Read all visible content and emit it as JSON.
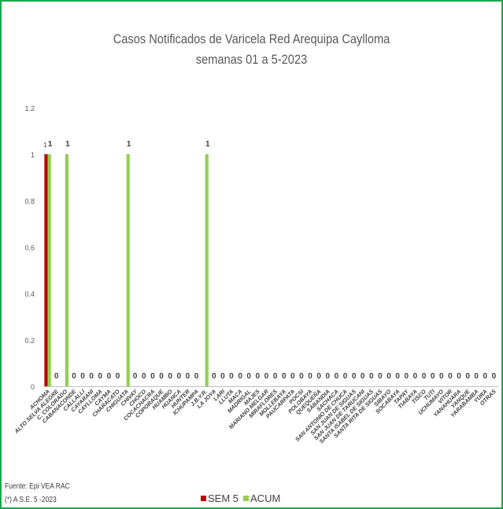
{
  "colors": {
    "sem5": "#c00000",
    "acum": "#92d050",
    "frame": "#1aa84a"
  },
  "chart_data": {
    "type": "bar",
    "title": "Casos Notificados de Varicela Red Arequipa Caylloma",
    "subtitle": "semanas 01 a 5-2023",
    "ylim": [
      0,
      1.2
    ],
    "yticks": [
      "0",
      "0.2",
      "0.4",
      "0.6",
      "0.8",
      "1",
      "1.2"
    ],
    "grid": false,
    "legend_position": "bottom",
    "categories": [
      "ACHOMA",
      "ALTO SELVA ALEGRE",
      "C. COLORADO",
      "CABANACONDE",
      "CALLALLI",
      "CAYARANI",
      "CAYLLOMA",
      "CAYMA",
      "CHARACATO",
      "CHIGUATA",
      "CHIVAY",
      "CHOCO",
      "COCACHACRA",
      "COPORAQUE",
      "HUAMBO",
      "HUANCA",
      "HUNTER",
      "ICHUPAMPA",
      "J.B.Y.R.",
      "LA JOYA",
      "LARI",
      "LLUTA",
      "MACA",
      "MADRIGAL",
      "MAJES",
      "MARIANO MELGAR",
      "MIRAFLORES",
      "MOLLEBAYA",
      "PAUCARPATA",
      "POCSI",
      "POLOBAYA",
      "QUEQUEÑA",
      "SABANDIA",
      "SACHACA",
      "SAN ANTONIO DE CHUCA",
      "SAN JUAN DE SIGUAS",
      "SAN JUAN DE TARUCANI",
      "SANTA ISABEL DE SIGUAS",
      "SANTA RITA DE SIGUAS",
      "SIBAYO",
      "SOCABAYA",
      "TAPAY",
      "TIABAYA",
      "TISCO",
      "TUTI",
      "UCHUMAYO",
      "VITOR",
      "YANAHUARA",
      "YANQUE",
      "YARABAMBA",
      "YURA",
      "OTRAS"
    ],
    "series": [
      {
        "name": "SEM 5",
        "values": [
          1,
          0,
          0,
          0,
          0,
          0,
          0,
          0,
          0,
          0,
          0,
          0,
          0,
          0,
          0,
          0,
          0,
          0,
          0,
          0,
          0,
          0,
          0,
          0,
          0,
          0,
          0,
          0,
          0,
          0,
          0,
          0,
          0,
          0,
          0,
          0,
          0,
          0,
          0,
          0,
          0,
          0,
          0,
          0,
          0,
          0,
          0,
          0,
          0,
          0,
          0,
          0
        ]
      },
      {
        "name": "ACUM",
        "values": [
          1,
          0,
          1,
          0,
          0,
          0,
          0,
          0,
          0,
          1,
          0,
          0,
          0,
          0,
          0,
          0,
          0,
          0,
          1,
          0,
          0,
          0,
          0,
          0,
          0,
          0,
          0,
          0,
          0,
          0,
          0,
          0,
          0,
          0,
          0,
          0,
          0,
          0,
          0,
          0,
          0,
          0,
          0,
          0,
          0,
          0,
          0,
          0,
          0,
          0,
          0,
          0
        ]
      }
    ]
  },
  "footer": {
    "source": "Fuente:  Epi VEA RAC",
    "note": "(*) A S.E. 5 -2023"
  },
  "legend": {
    "sem5": "SEM 5",
    "acum": "ACUM"
  }
}
